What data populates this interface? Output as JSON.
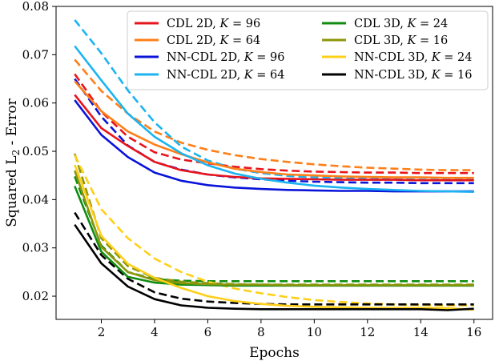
{
  "chart_data": {
    "type": "line",
    "xlabel": "Epochs",
    "ylabel": "Squared L2 - Error",
    "ylabel_sub": "2",
    "ylabel_prefix": "Squared L",
    "ylabel_suffix": " - Error",
    "xlim": [
      0.3,
      16.7
    ],
    "ylim": [
      0.0152,
      0.08
    ],
    "xticks": [
      2,
      4,
      6,
      8,
      10,
      12,
      14,
      16
    ],
    "yticks": [
      0.02,
      0.03,
      0.04,
      0.05,
      0.06,
      0.07,
      0.08
    ],
    "ytick_labels": [
      "0.02",
      "0.03",
      "0.04",
      "0.05",
      "0.06",
      "0.07",
      "0.08"
    ],
    "legend_position": "top-right",
    "x": [
      1,
      2,
      3,
      4,
      5,
      6,
      7,
      8,
      9,
      10,
      11,
      12,
      13,
      14,
      15,
      16
    ],
    "series": [
      {
        "name": "CDL 2D, K = 96",
        "name_main": "CDL 2D, ",
        "name_k": "K",
        "name_val": " = 96",
        "color": "#e8141c",
        "solid": [
          0.0617,
          0.0548,
          0.0511,
          0.0478,
          0.0461,
          0.0452,
          0.0447,
          0.0444,
          0.0443,
          0.0442,
          0.0441,
          0.0441,
          0.0441,
          0.044,
          0.044,
          0.044
        ],
        "dashed": [
          0.066,
          0.0582,
          0.053,
          0.0498,
          0.0483,
          0.0475,
          0.0468,
          0.0463,
          0.046,
          0.0458,
          0.0457,
          0.0456,
          0.0456,
          0.0455,
          0.0455,
          0.0455
        ]
      },
      {
        "name": "CDL 2D, K = 64",
        "name_main": "CDL 2D, ",
        "name_k": "K",
        "name_val": " = 64",
        "color": "#ff7f18",
        "solid": [
          0.0645,
          0.0583,
          0.0541,
          0.0514,
          0.0494,
          0.0477,
          0.0464,
          0.0457,
          0.0452,
          0.045,
          0.0448,
          0.0447,
          0.0446,
          0.0446,
          0.0445,
          0.0445
        ],
        "dashed": [
          0.069,
          0.0625,
          0.0578,
          0.0541,
          0.0518,
          0.0503,
          0.0492,
          0.0484,
          0.0478,
          0.0473,
          0.0469,
          0.0466,
          0.0464,
          0.0462,
          0.0461,
          0.0461
        ]
      },
      {
        "name": "NN-CDL 2D, K = 96",
        "name_main": "NN-CDL 2D, ",
        "name_k": "K",
        "name_val": " = 96",
        "color": "#0a14d9",
        "solid": [
          0.0606,
          0.0534,
          0.0488,
          0.0456,
          0.0439,
          0.043,
          0.0425,
          0.0422,
          0.042,
          0.0419,
          0.0418,
          0.0418,
          0.0417,
          0.0417,
          0.0417,
          0.0417
        ],
        "dashed": [
          0.065,
          0.0572,
          0.0512,
          0.0478,
          0.0462,
          0.0452,
          0.0446,
          0.0442,
          0.0439,
          0.0437,
          0.0436,
          0.0435,
          0.0435,
          0.0434,
          0.0434,
          0.0434
        ]
      },
      {
        "name": "NN-CDL 2D, K = 64",
        "name_main": "NN-CDL 2D, ",
        "name_k": "K",
        "name_val": " = 64",
        "color": "#1cb4f0",
        "solid": [
          0.0718,
          0.0647,
          0.0578,
          0.053,
          0.0496,
          0.0471,
          0.0454,
          0.0443,
          0.0435,
          0.0429,
          0.0425,
          0.0422,
          0.042,
          0.0418,
          0.0417,
          0.0416
        ],
        "dashed": [
          0.0772,
          0.0703,
          0.0626,
          0.056,
          0.051,
          0.0481,
          0.0464,
          0.0455,
          0.0449,
          0.0446,
          0.0444,
          0.0443,
          0.0442,
          0.0441,
          0.0441,
          0.0441
        ]
      },
      {
        "name": "CDL 3D, K = 24",
        "name_main": "CDL 3D, ",
        "name_k": "K",
        "name_val": " = 24",
        "color": "#108c10",
        "solid": [
          0.0428,
          0.0292,
          0.024,
          0.0228,
          0.0224,
          0.0223,
          0.0222,
          0.0222,
          0.0222,
          0.0222,
          0.0222,
          0.0222,
          0.0222,
          0.0222,
          0.0222,
          0.0222
        ],
        "dashed": [
          0.0448,
          0.0305,
          0.025,
          0.0235,
          0.0232,
          0.0231,
          0.0231,
          0.0231,
          0.0231,
          0.0231,
          0.0231,
          0.0231,
          0.0231,
          0.0231,
          0.0231,
          0.0231
        ]
      },
      {
        "name": "CDL 3D, K = 16",
        "name_main": "CDL 3D, ",
        "name_k": "K",
        "name_val": " = 16",
        "color": "#8c960a",
        "solid": [
          0.046,
          0.0302,
          0.025,
          0.0233,
          0.0227,
          0.0225,
          0.0224,
          0.0224,
          0.0223,
          0.0223,
          0.0223,
          0.0223,
          0.0223,
          0.0223,
          0.0223,
          0.0223
        ],
        "dashed": [
          0.0495,
          0.032,
          0.0262,
          0.0238,
          0.023,
          0.0227,
          0.0225,
          0.0224,
          0.0224,
          0.0224,
          0.0224,
          0.0224,
          0.0224,
          0.0224,
          0.0224,
          0.0224
        ]
      },
      {
        "name": "NN-CDL 3D, K = 24",
        "name_main": "NN-CDL 3D, ",
        "name_k": "K",
        "name_val": " = 24",
        "color": "#ffcf18",
        "solid": [
          0.0472,
          0.0325,
          0.0267,
          0.0238,
          0.0217,
          0.02,
          0.019,
          0.0184,
          0.018,
          0.0178,
          0.0177,
          0.0176,
          0.0176,
          0.0176,
          0.0175,
          0.0172
        ],
        "dashed": [
          0.0492,
          0.038,
          0.032,
          0.0278,
          0.025,
          0.023,
          0.0216,
          0.0206,
          0.0198,
          0.0192,
          0.0188,
          0.0185,
          0.0183,
          0.0182,
          0.0181,
          0.0181
        ]
      },
      {
        "name": "NN-CDL 3D, K = 16",
        "name_main": "NN-CDL 3D, ",
        "name_k": "K",
        "name_val": " = 16",
        "color": "#000000",
        "solid": [
          0.0348,
          0.0268,
          0.022,
          0.0194,
          0.0181,
          0.0176,
          0.0174,
          0.0173,
          0.0173,
          0.0173,
          0.0173,
          0.0173,
          0.0173,
          0.0173,
          0.0171,
          0.0174
        ],
        "dashed": [
          0.0373,
          0.0285,
          0.0236,
          0.0208,
          0.0195,
          0.0189,
          0.0186,
          0.0184,
          0.0183,
          0.0183,
          0.0183,
          0.0183,
          0.0183,
          0.0183,
          0.0183,
          0.0183
        ]
      }
    ]
  }
}
